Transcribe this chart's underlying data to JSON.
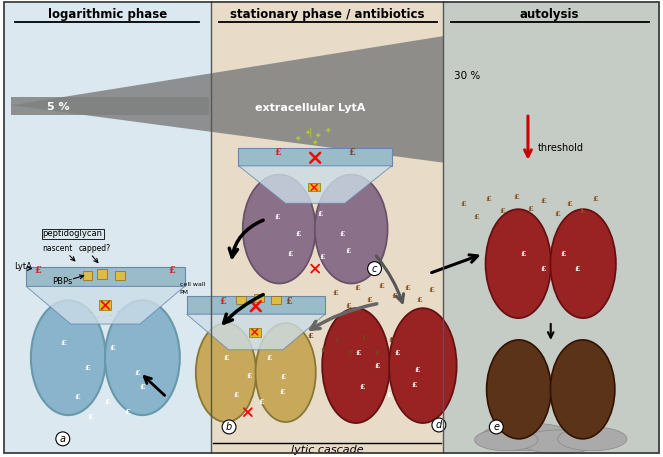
{
  "bg_left": "#dce8f0",
  "bg_mid": "#e8dcc8",
  "bg_right": "#c5ccc5",
  "title_left": "logarithmic phase",
  "title_mid": "stationary phase / antibiotics",
  "title_right": "autolysis",
  "pct_5": "5 %",
  "pct_30": "30 %",
  "label_extracellular": "extracellular LytA",
  "label_threshold": "threshold",
  "label_lytic": "lytic cascade",
  "label_peptidoglycan": "peptidoglycan",
  "label_nascent": "nascent",
  "label_capped": "capped?",
  "label_lyta": "LytA",
  "label_pbps": "PBPs",
  "label_cellwall": "cell wall",
  "label_pm": "PM",
  "label_a": "a",
  "label_b": "b",
  "label_c": "c",
  "label_d": "d",
  "label_e": "e",
  "arrow_red_color": "#cc0000",
  "triangle_color": "#888888",
  "cell_blue": "#8ab4cc",
  "cell_yellow": "#c8a85a",
  "cell_red": "#992222",
  "cell_dark": "#5a3319",
  "cell_mauve": "#8a7088",
  "cw_color": "#9abcc8",
  "cw_edge": "#6688aa",
  "cone_color": "#ccdde8",
  "fig_width": 6.63,
  "fig_height": 4.57
}
